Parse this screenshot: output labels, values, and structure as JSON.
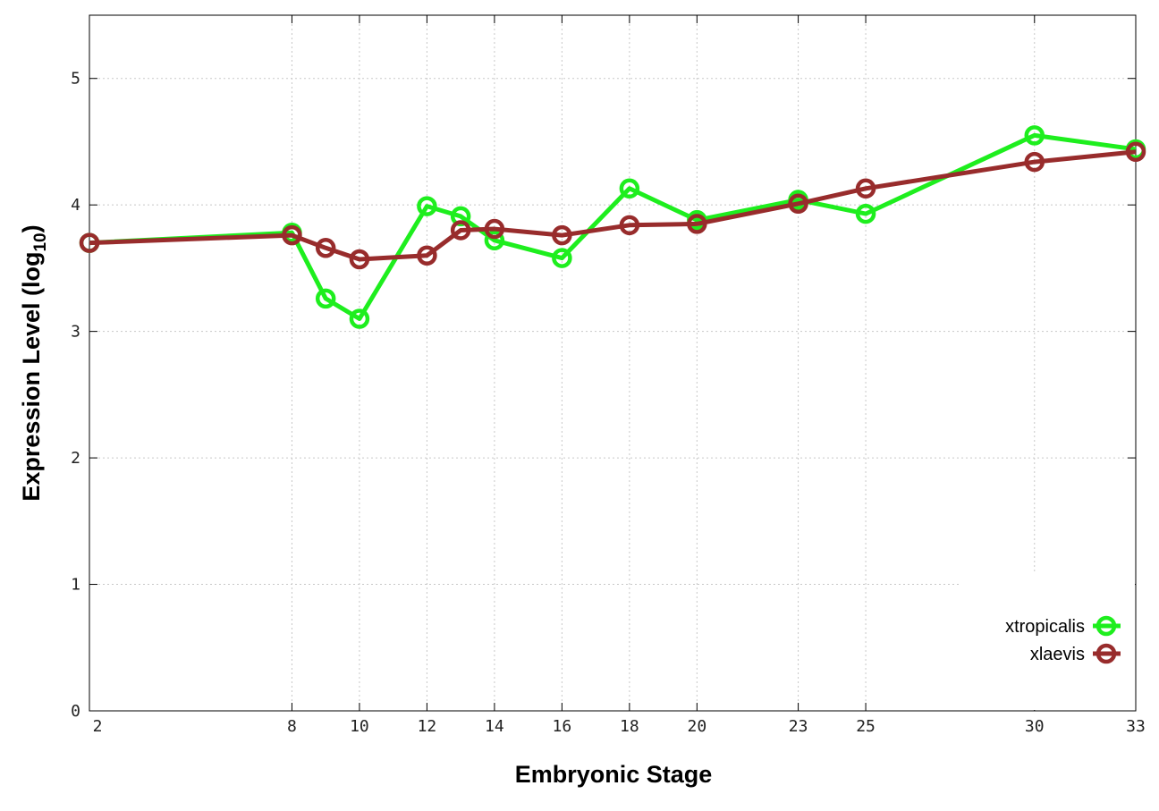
{
  "chart_data": {
    "type": "line",
    "title": "",
    "xlabel": "Embryonic Stage",
    "ylabel": "Expression Level (log10)",
    "ylabel_parts": {
      "main": "Expression Level (log",
      "sub": "10",
      "close": ")"
    },
    "xlim": [
      2,
      33
    ],
    "ylim": [
      0,
      5.5
    ],
    "x_ticks": [
      2,
      8,
      10,
      12,
      14,
      16,
      18,
      20,
      23,
      25,
      30,
      33
    ],
    "x_tick_labels": [
      "2",
      "8",
      "10",
      "12",
      "14",
      "16",
      "18",
      "20",
      "23",
      "25",
      "30",
      "33"
    ],
    "y_ticks": [
      0,
      1,
      2,
      3,
      4,
      5
    ],
    "y_tick_labels": [
      "0",
      "1",
      "2",
      "3",
      "4",
      "5"
    ],
    "grid": true,
    "legend_position": "bottom-right",
    "series": [
      {
        "name": "xtropicalis",
        "color": "#1eee1e",
        "marker": "open-circle",
        "points": [
          [
            2,
            3.7
          ],
          [
            8,
            3.78
          ],
          [
            9,
            3.26
          ],
          [
            10,
            3.1
          ],
          [
            12,
            3.99
          ],
          [
            13,
            3.91
          ],
          [
            14,
            3.72
          ],
          [
            16,
            3.58
          ],
          [
            18,
            4.13
          ],
          [
            20,
            3.88
          ],
          [
            23,
            4.04
          ],
          [
            25,
            3.93
          ],
          [
            30,
            4.55
          ],
          [
            33,
            4.44
          ]
        ]
      },
      {
        "name": "xlaevis",
        "color": "#982c2c",
        "marker": "open-circle",
        "points": [
          [
            2,
            3.7
          ],
          [
            8,
            3.76
          ],
          [
            9,
            3.66
          ],
          [
            10,
            3.57
          ],
          [
            12,
            3.6
          ],
          [
            13,
            3.8
          ],
          [
            14,
            3.81
          ],
          [
            16,
            3.76
          ],
          [
            18,
            3.84
          ],
          [
            20,
            3.85
          ],
          [
            23,
            4.01
          ],
          [
            25,
            4.13
          ],
          [
            30,
            4.34
          ],
          [
            33,
            4.42
          ]
        ]
      }
    ]
  }
}
